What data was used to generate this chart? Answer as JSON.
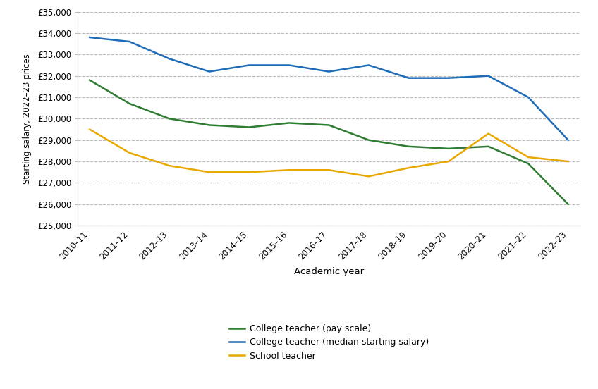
{
  "years": [
    "2010–11",
    "2011–12",
    "2012–13",
    "2013–14",
    "2014–15",
    "2015–16",
    "2016–17",
    "2017–18",
    "2018–19",
    "2019–20",
    "2020–21",
    "2021–22",
    "2022–23"
  ],
  "college_pay_scale": [
    31800,
    30700,
    30000,
    29700,
    29600,
    29800,
    29700,
    29000,
    28700,
    28600,
    28700,
    27900,
    26000
  ],
  "college_median": [
    33800,
    33600,
    32800,
    32200,
    32500,
    32500,
    32200,
    32500,
    31900,
    31900,
    32000,
    31000,
    29000
  ],
  "school_teacher": [
    29500,
    28400,
    27800,
    27500,
    27500,
    27600,
    27600,
    27300,
    27700,
    28000,
    29300,
    28200,
    28000
  ],
  "line_colors": {
    "college_pay_scale": "#2e7d32",
    "college_median": "#1e6bb8",
    "school_teacher": "#e8a800"
  },
  "xlabel": "Academic year",
  "ylabel": "Starting salary, 2022–23 prices",
  "ylim": [
    25000,
    35000
  ],
  "yticks": [
    25000,
    26000,
    27000,
    28000,
    29000,
    30000,
    31000,
    32000,
    33000,
    34000,
    35000
  ],
  "legend_labels": [
    "College teacher (pay scale)",
    "College teacher (median starting salary)",
    "School teacher"
  ],
  "background_color": "#ffffff",
  "grid_color": "#bbbbbb",
  "line_width": 1.8
}
